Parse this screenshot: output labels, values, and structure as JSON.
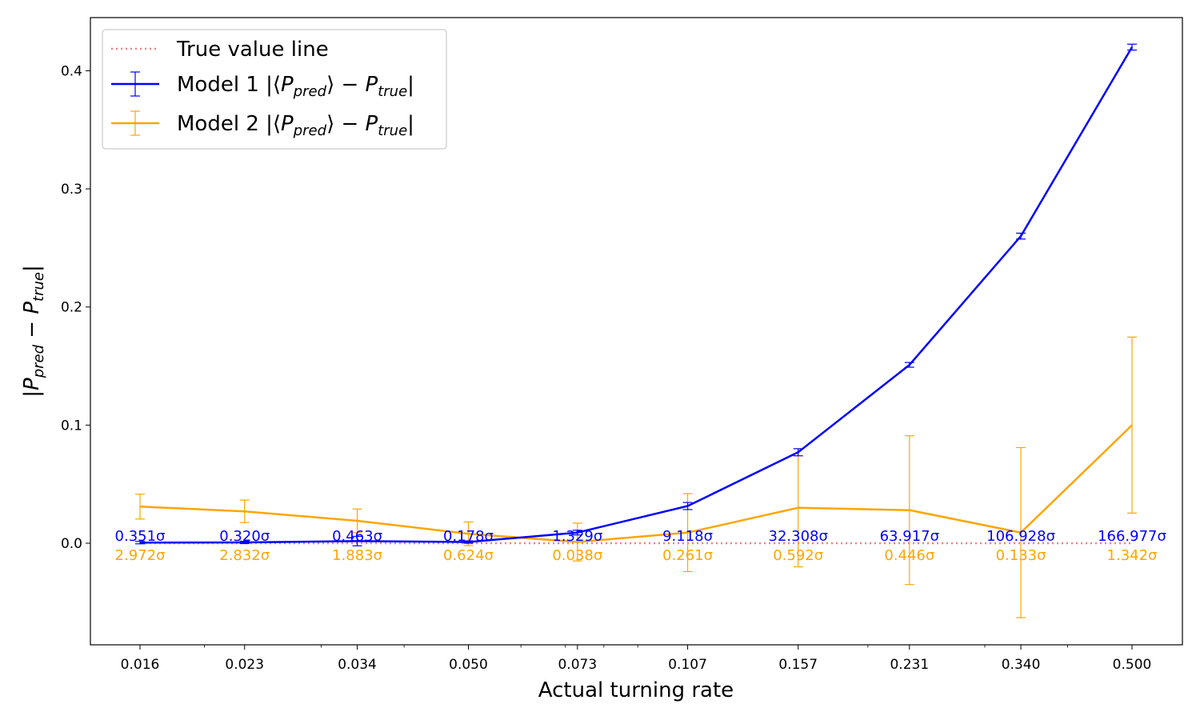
{
  "chart_data": {
    "type": "line",
    "xlabel": "Actual turning rate",
    "ylabel_parts": {
      "main": "|P",
      "sub1": "pred",
      "mid": " − P",
      "sub2": "true",
      "end": "|"
    },
    "ylim": [
      -0.086,
      0.445
    ],
    "y_ticks": [
      0.0,
      0.1,
      0.2,
      0.3,
      0.4
    ],
    "y_tick_labels": [
      "0.0",
      "0.1",
      "0.2",
      "0.3",
      "0.4"
    ],
    "x_scale": "log",
    "x_values": [
      0.016,
      0.023,
      0.034,
      0.05,
      0.073,
      0.107,
      0.157,
      0.231,
      0.34,
      0.5
    ],
    "x_tick_labels": [
      "0.016",
      "0.023",
      "0.034",
      "0.050",
      "0.073",
      "0.107",
      "0.157",
      "0.231",
      "0.340",
      "0.500"
    ],
    "reference_line": {
      "name": "True value line",
      "y": 0.0,
      "color": "#f08080",
      "style": "dotted"
    },
    "series": [
      {
        "name": "Model 1 |⟨P_pred⟩ − P_true|",
        "legend": {
          "prefix": "Model 1 |⟨",
          "sub1": "pred",
          "mid": "⟩ − ",
          "sub2": "true",
          "suffix": "|"
        },
        "color": "#0000ff",
        "values": [
          0.0005,
          0.0007,
          0.0018,
          0.001,
          0.009,
          0.0315,
          0.077,
          0.151,
          0.26,
          0.42
        ],
        "errors": [
          0.001,
          0.001,
          0.004,
          0.001,
          0.002,
          0.003,
          0.003,
          0.002,
          0.0025,
          0.0025
        ],
        "sigma_labels": [
          "0.351σ",
          "0.320σ",
          "0.463σ",
          "0.178σ",
          "1.329σ",
          "9.118σ",
          "32.308σ",
          "63.917σ",
          "106.928σ",
          "166.977σ"
        ]
      },
      {
        "name": "Model 2 |⟨P_pred⟩ − P_true|",
        "legend": {
          "prefix": "Model 2 |⟨",
          "sub1": "pred",
          "mid": "⟩ − ",
          "sub2": "true",
          "suffix": "|"
        },
        "color": "#ffa500",
        "values": [
          0.031,
          0.027,
          0.019,
          0.008,
          0.001,
          0.009,
          0.03,
          0.028,
          0.009,
          0.1
        ],
        "errors": [
          0.0105,
          0.0095,
          0.01,
          0.01,
          0.016,
          0.033,
          0.05,
          0.063,
          0.072,
          0.0745
        ],
        "sigma_labels": [
          "2.972σ",
          "2.832σ",
          "1.883σ",
          "0.624σ",
          "0.038σ",
          "0.261σ",
          "0.592σ",
          "0.446σ",
          "0.133σ",
          "1.342σ"
        ]
      }
    ]
  }
}
